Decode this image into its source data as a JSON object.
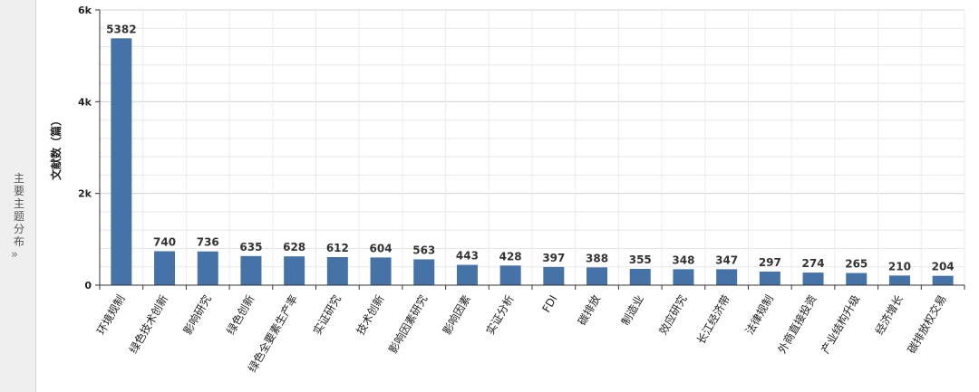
{
  "sidebar": {
    "label": "主要主题分布",
    "arrow": "»"
  },
  "chart_data": {
    "type": "bar",
    "ylabel": "文献数（篇）",
    "xlabel": "",
    "ylim": [
      0,
      6000
    ],
    "yticks": [
      0,
      2000,
      4000,
      6000
    ],
    "ytick_labels": [
      "0",
      "2k",
      "4k",
      "6k"
    ],
    "grid": true,
    "bar_color": "#4572a7",
    "categories": [
      "环境规制",
      "绿色技术创新",
      "影响研究",
      "绿色创新",
      "绿色全要素生产率",
      "实证研究",
      "技术创新",
      "影响因素研究",
      "影响因素",
      "实证分析",
      "FDI",
      "碳排放",
      "制造业",
      "效应研究",
      "长江经济带",
      "法律规制",
      "外商直接投资",
      "产业结构升级",
      "经济增长",
      "碳排放权交易"
    ],
    "values": [
      5382,
      740,
      736,
      635,
      628,
      612,
      604,
      563,
      443,
      428,
      397,
      388,
      355,
      348,
      347,
      297,
      274,
      265,
      210,
      204
    ]
  }
}
